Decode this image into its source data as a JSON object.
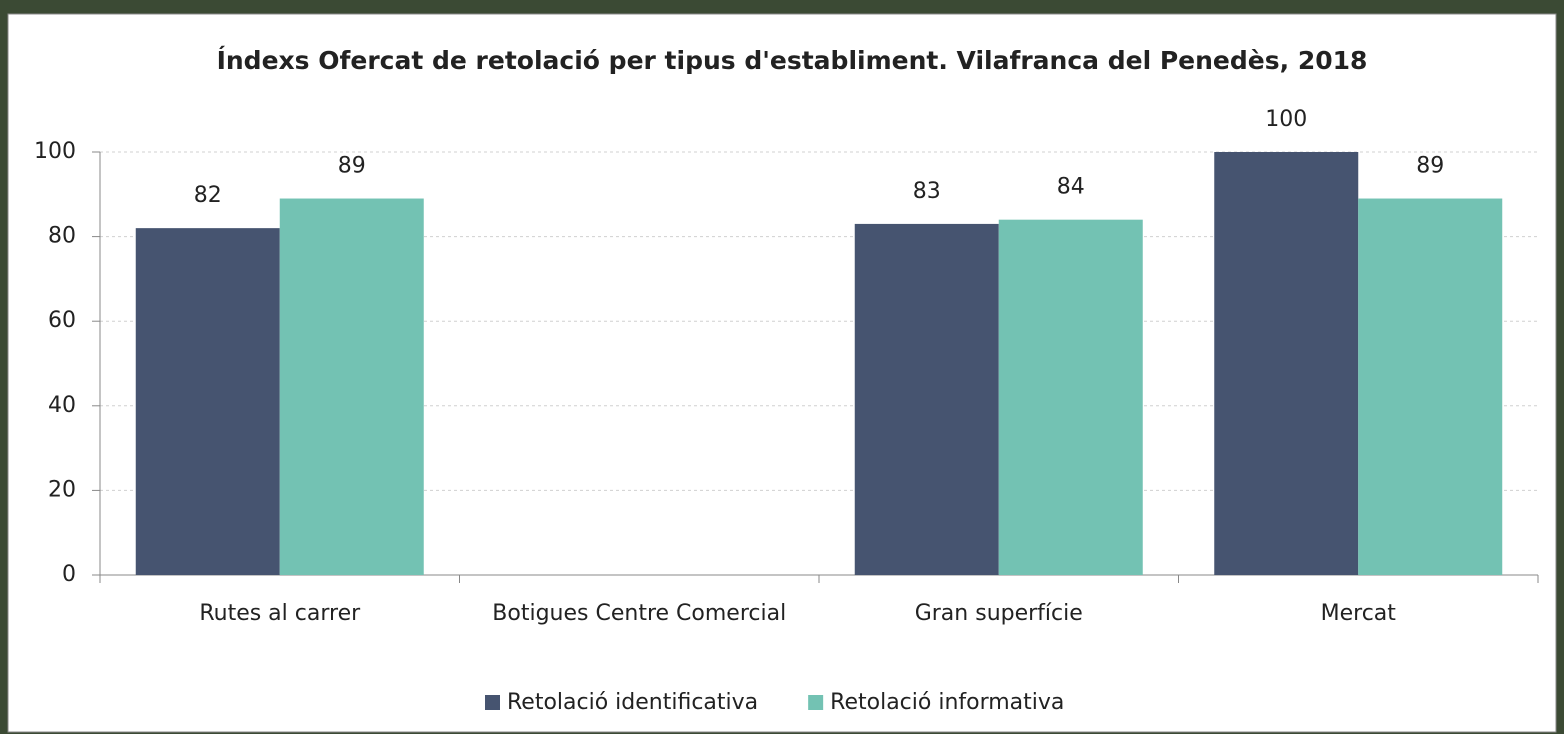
{
  "chart_data": {
    "type": "bar",
    "title": "Índexs Ofercat de retolació per tipus d'establiment. Vilafranca del Penedès, 2018",
    "categories": [
      "Rutes al carrer",
      "Botigues Centre Comercial",
      "Gran superfície",
      "Mercat"
    ],
    "series": [
      {
        "name": "Retolació identificativa",
        "color": "#465470",
        "values": [
          82,
          null,
          83,
          100
        ]
      },
      {
        "name": "Retolació informativa",
        "color": "#73c2b3",
        "values": [
          89,
          null,
          84,
          89
        ]
      }
    ],
    "ylim": [
      0,
      100
    ],
    "yticks": [
      0,
      20,
      40,
      60,
      80,
      100
    ],
    "grid": true,
    "legend": "bottom"
  }
}
